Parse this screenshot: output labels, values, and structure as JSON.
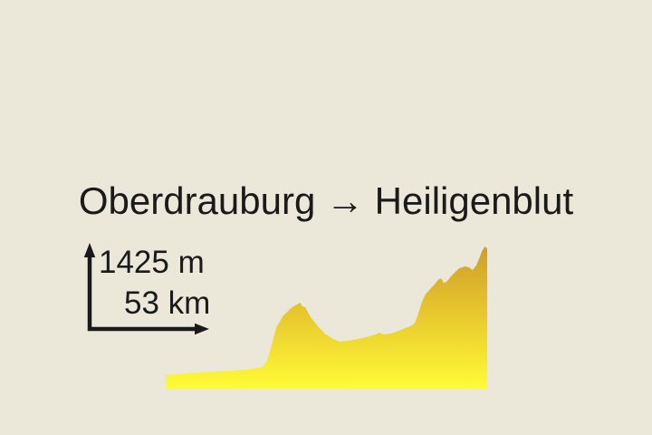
{
  "page": {
    "background": "#ebe8d9",
    "text_color": "#1a1a1a"
  },
  "title": {
    "text": "Oberdrauburg → Heiligenblut"
  },
  "scale": {
    "elevation_label": "1425 m",
    "distance_label": "53 km"
  },
  "icons": {
    "up_arrow": "elevation scale arrow",
    "right_arrow": "distance scale arrow"
  },
  "chart_data": {
    "type": "area",
    "title": "Oberdrauburg → Heiligenblut",
    "start_point": "Oberdrauburg",
    "end_point": "Heiligenblut",
    "xlabel": "53 km",
    "ylabel": "1425 m",
    "x_unit": "km",
    "y_unit": "m",
    "x_range": [
      0,
      53
    ],
    "y_range": [
      0,
      1425
    ],
    "grid": false,
    "legend": false,
    "fill_gradient": {
      "top": "#cf9e29",
      "mid": "#e9ca2e",
      "bottom": "#fffc35"
    },
    "profile": [
      [
        0,
        136
      ],
      [
        3.3,
        154
      ],
      [
        8.5,
        172
      ],
      [
        13,
        191
      ],
      [
        16,
        218
      ],
      [
        16.7,
        281
      ],
      [
        17.5,
        445
      ],
      [
        18.2,
        608
      ],
      [
        19.3,
        726
      ],
      [
        20.5,
        799
      ],
      [
        21.3,
        835
      ],
      [
        22.2,
        862
      ],
      [
        22.5,
        826
      ],
      [
        23,
        817
      ],
      [
        23.9,
        717
      ],
      [
        25.2,
        617
      ],
      [
        26.4,
        545
      ],
      [
        27.6,
        499
      ],
      [
        28.7,
        472
      ],
      [
        30.2,
        481
      ],
      [
        31.7,
        499
      ],
      [
        33.1,
        517
      ],
      [
        34.6,
        545
      ],
      [
        35.2,
        563
      ],
      [
        36,
        545
      ],
      [
        37.2,
        554
      ],
      [
        38.4,
        581
      ],
      [
        39.6,
        608
      ],
      [
        40.6,
        635
      ],
      [
        41.1,
        663
      ],
      [
        41.7,
        762
      ],
      [
        42.2,
        862
      ],
      [
        42.8,
        944
      ],
      [
        43.6,
        998
      ],
      [
        44.3,
        1044
      ],
      [
        44.9,
        1089
      ],
      [
        45.4,
        1107
      ],
      [
        45.8,
        1062
      ],
      [
        46.3,
        1071
      ],
      [
        46.9,
        1116
      ],
      [
        47.6,
        1162
      ],
      [
        48.4,
        1207
      ],
      [
        49.3,
        1225
      ],
      [
        50,
        1216
      ],
      [
        50.6,
        1189
      ],
      [
        51.2,
        1234
      ],
      [
        51.7,
        1307
      ],
      [
        52.1,
        1371
      ],
      [
        52.6,
        1425
      ],
      [
        53,
        1407
      ]
    ]
  }
}
